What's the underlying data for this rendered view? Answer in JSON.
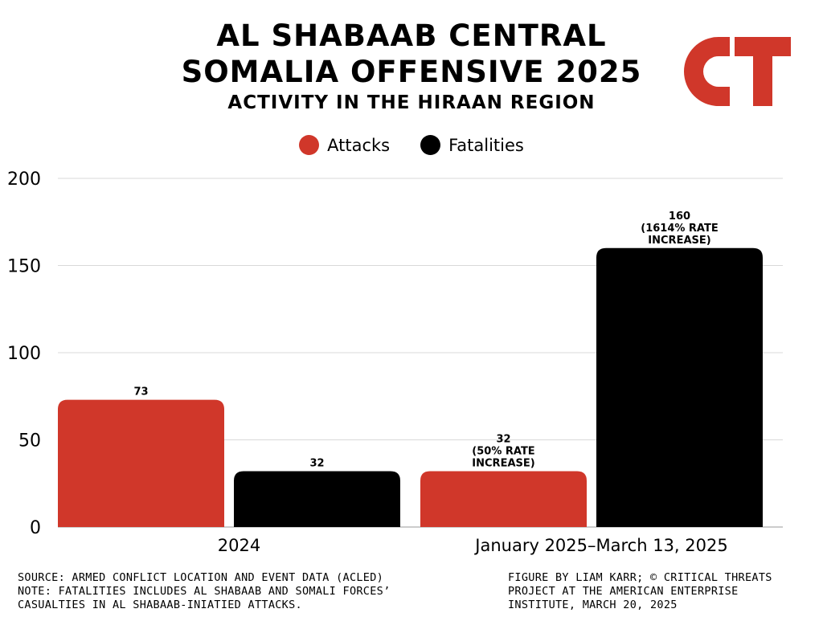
{
  "header": {
    "title_line1": "AL SHABAAB CENTRAL",
    "title_line2": "SOMALIA OFFENSIVE 2025",
    "subtitle": "ACTIVITY IN THE HIRAAN REGION"
  },
  "logo": {
    "text": "CT",
    "color": "#d0372a"
  },
  "legend": [
    {
      "label": "Attacks",
      "color": "#d0372a"
    },
    {
      "label": "Fatalities",
      "color": "#000000"
    }
  ],
  "chart_data": {
    "type": "bar",
    "categories": [
      "2024",
      "January 2025–March 13, 2025"
    ],
    "series": [
      {
        "name": "Attacks",
        "color": "#d0372a",
        "values": [
          73,
          32
        ],
        "labels": [
          [
            "73"
          ],
          [
            "32",
            "(50% RATE",
            "INCREASE)"
          ]
        ]
      },
      {
        "name": "Fatalities",
        "color": "#000000",
        "values": [
          32,
          160
        ],
        "labels": [
          [
            "32"
          ],
          [
            "160",
            "(1614% RATE",
            "INCREASE)"
          ]
        ]
      }
    ],
    "ylim": [
      0,
      200
    ],
    "yticks": [
      0,
      50,
      100,
      150,
      200
    ],
    "grid": true,
    "legend_position": "top-center"
  },
  "footer": {
    "left": [
      "SOURCE: ARMED CONFLICT LOCATION AND EVENT DATA (ACLED)",
      "NOTE: FATALITIES INCLUDES AL SHABAAB AND SOMALI FORCES’",
      "CASUALTIES IN AL SHABAAB-INIATIED ATTACKS."
    ],
    "right": [
      "FIGURE BY LIAM KARR; © CRITICAL THREATS",
      "PROJECT AT THE AMERICAN ENTERPRISE",
      "INSTITUTE, MARCH 20, 2025"
    ]
  }
}
